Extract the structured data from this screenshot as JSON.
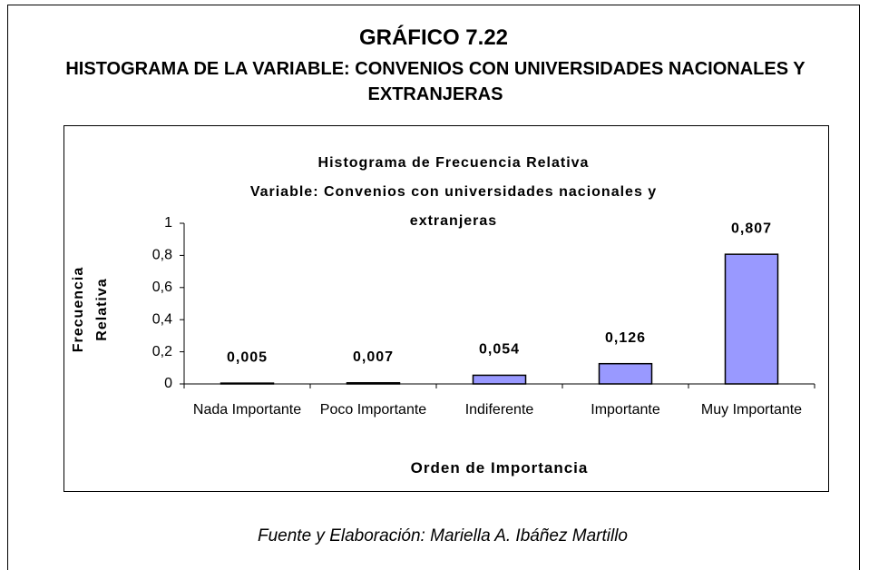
{
  "header": {
    "title": "GRÁFICO 7.22",
    "subtitle": "HISTOGRAMA DE LA VARIABLE: CONVENIOS CON UNIVERSIDADES NACIONALES Y EXTRANJERAS"
  },
  "chart_data": {
    "type": "bar",
    "title": "Histograma de Frecuencia Relativa",
    "subtitle": "Variable: Convenios con universidades nacionales y extranjeras",
    "x_label": "Orden de Importancia",
    "y_label": "Frecuencia Relativa",
    "categories": [
      "Nada Importante",
      "Poco Importante",
      "Indiferente",
      "Importante",
      "Muy Importante"
    ],
    "values": [
      0.005,
      0.007,
      0.054,
      0.126,
      0.807
    ],
    "value_labels": [
      "0,005",
      "0,007",
      "0,054",
      "0,126",
      "0,807"
    ],
    "color": "#9999ff",
    "ylim": [
      0,
      1
    ],
    "yticks": [
      0,
      {
        "value": 0.2,
        "label": "0,2"
      },
      {
        "value": 0.4,
        "label": "0,4"
      },
      {
        "value": 0.6,
        "label": "0,6"
      },
      {
        "value": 0.8,
        "label": "0,8"
      },
      1
    ],
    "grid": false
  },
  "footer": {
    "source": "Fuente y Elaboración: Mariella A. Ibáñez Martillo"
  }
}
